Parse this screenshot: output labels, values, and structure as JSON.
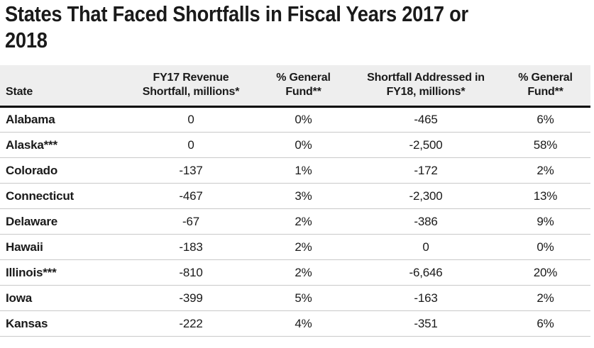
{
  "title": {
    "text": "States That Faced Shortfalls in Fiscal Years 2017 or 2018",
    "line1": "States That Faced Shortfalls in Fiscal Years 2017 or",
    "line2": "2018"
  },
  "colors": {
    "title_text": "#1a1a1a",
    "header_background": "#eeeeee",
    "header_rule": "#000000",
    "row_divider": "#c9c9c9",
    "body_text": "#1a1a1a",
    "page_background": "#ffffff"
  },
  "chart_data": {
    "type": "table",
    "title": "States That Faced Shortfalls in Fiscal Years 2017 or 2018",
    "columns": [
      "State",
      "FY17 Revenue Shortfall, millions*",
      "% General Fund**",
      "Shortfall Addressed in FY18, millions*",
      "% General Fund**"
    ],
    "column_keys": [
      "state",
      "fy17-revenue-shortfall-millions",
      "fy17-pct-general-fund",
      "shortfall-addressed-fy18-millions",
      "fy18-pct-general-fund"
    ],
    "rows": [
      [
        "Alabama",
        "0",
        "0%",
        "-465",
        "6%"
      ],
      [
        "Alaska***",
        "0",
        "0%",
        "-2,500",
        "58%"
      ],
      [
        "Colorado",
        "-137",
        "1%",
        "-172",
        "2%"
      ],
      [
        "Connecticut",
        "-467",
        "3%",
        "-2,300",
        "13%"
      ],
      [
        "Delaware",
        "-67",
        "2%",
        "-386",
        "9%"
      ],
      [
        "Hawaii",
        "-183",
        "2%",
        "0",
        "0%"
      ],
      [
        "Illinois***",
        "-810",
        "2%",
        "-6,646",
        "20%"
      ],
      [
        "Iowa",
        "-399",
        "5%",
        "-163",
        "2%"
      ],
      [
        "Kansas",
        "-222",
        "4%",
        "-351",
        "6%"
      ]
    ]
  }
}
